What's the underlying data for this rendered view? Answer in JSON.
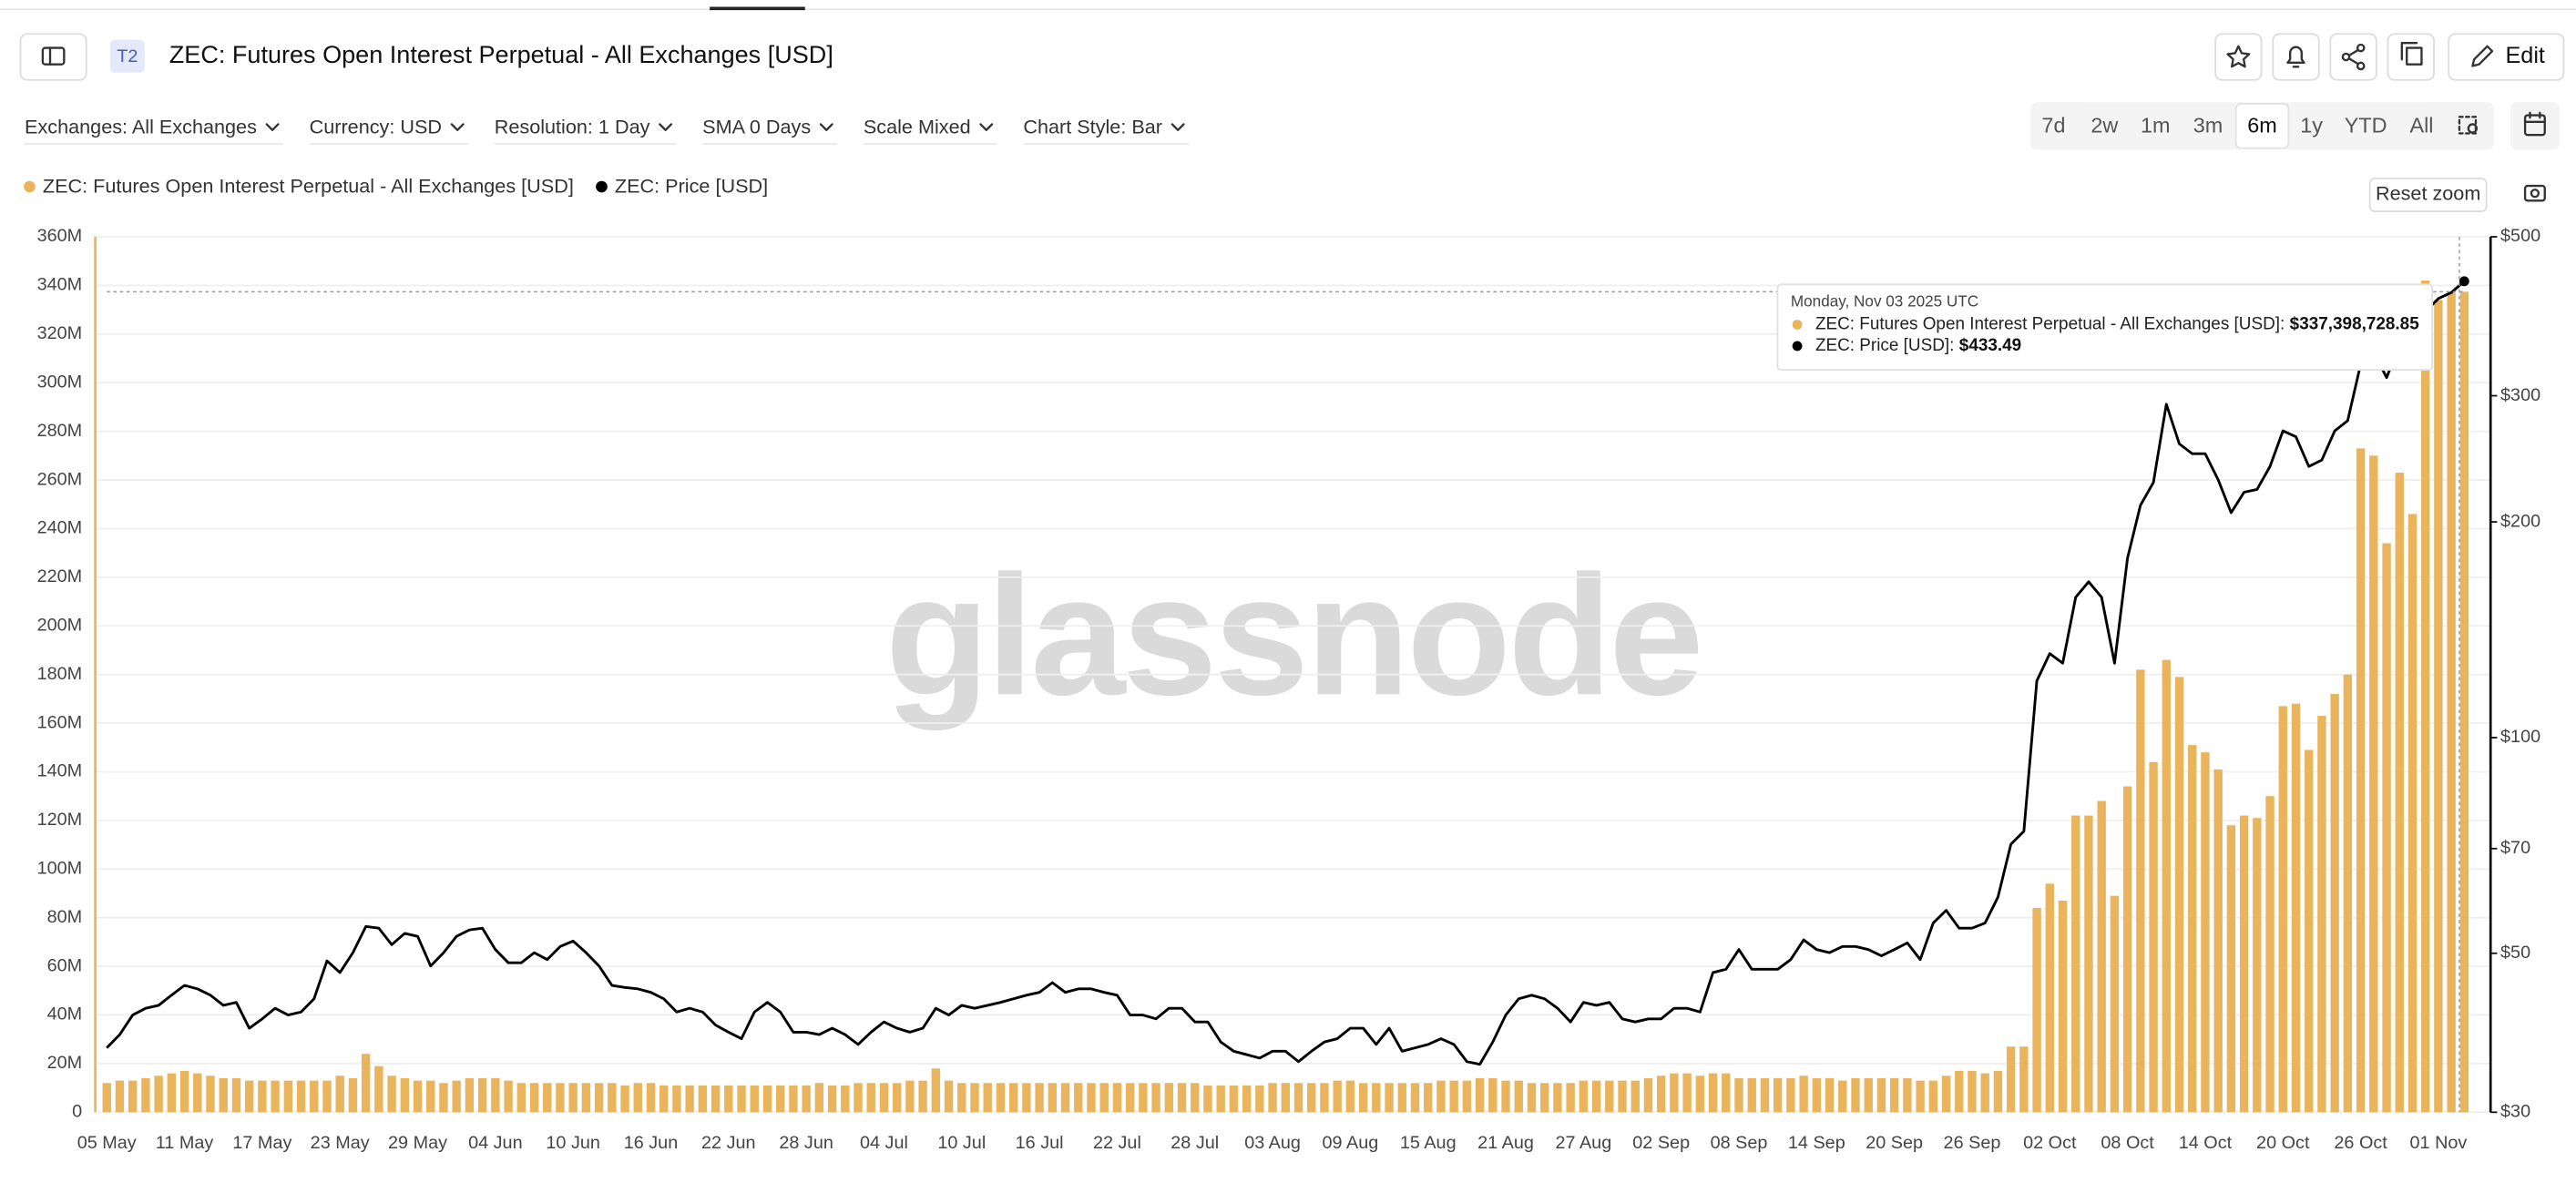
{
  "header": {
    "badge": "T2",
    "title": "ZEC: Futures Open Interest Perpetual - All Exchanges [USD]",
    "edit": "Edit"
  },
  "toolbar": {
    "filters": [
      "Exchanges: All Exchanges",
      "Currency: USD",
      "Resolution: 1 Day",
      "SMA 0 Days",
      "Scale Mixed",
      "Chart Style: Bar"
    ],
    "ranges": [
      "7d",
      "2w",
      "1m",
      "3m",
      "6m",
      "1y",
      "YTD",
      "All"
    ],
    "active_range": 4,
    "reset_zoom": "Reset zoom"
  },
  "chart_data": {
    "type": "bar",
    "watermark": "glassnode",
    "categories": [
      "05 May",
      null,
      null,
      null,
      null,
      null,
      "11 May",
      null,
      null,
      null,
      null,
      null,
      "17 May",
      null,
      null,
      null,
      null,
      null,
      "23 May",
      null,
      null,
      null,
      null,
      null,
      "29 May",
      null,
      null,
      null,
      null,
      null,
      "04 Jun",
      null,
      null,
      null,
      null,
      null,
      "10 Jun",
      null,
      null,
      null,
      null,
      null,
      "16 Jun",
      null,
      null,
      null,
      null,
      null,
      "22 Jun",
      null,
      null,
      null,
      null,
      null,
      "28 Jun",
      null,
      null,
      null,
      null,
      null,
      "04 Jul",
      null,
      null,
      null,
      null,
      null,
      "10 Jul",
      null,
      null,
      null,
      null,
      null,
      "16 Jul",
      null,
      null,
      null,
      null,
      null,
      "22 Jul",
      null,
      null,
      null,
      null,
      null,
      "28 Jul",
      null,
      null,
      null,
      null,
      null,
      "03 Aug",
      null,
      null,
      null,
      null,
      null,
      "09 Aug",
      null,
      null,
      null,
      null,
      null,
      "15 Aug",
      null,
      null,
      null,
      null,
      null,
      "21 Aug",
      null,
      null,
      null,
      null,
      null,
      "27 Aug",
      null,
      null,
      null,
      null,
      null,
      "02 Sep",
      null,
      null,
      null,
      null,
      null,
      "08 Sep",
      null,
      null,
      null,
      null,
      null,
      "14 Sep",
      null,
      null,
      null,
      null,
      null,
      "20 Sep",
      null,
      null,
      null,
      null,
      null,
      "26 Sep",
      null,
      null,
      null,
      null,
      null,
      "02 Oct",
      null,
      null,
      null,
      null,
      null,
      "08 Oct",
      null,
      null,
      null,
      null,
      null,
      "14 Oct",
      null,
      null,
      null,
      null,
      null,
      "20 Oct",
      null,
      null,
      null,
      null,
      null,
      "26 Oct",
      null,
      null,
      null,
      null,
      null,
      "01 Nov",
      null,
      null
    ],
    "series": [
      {
        "name": "ZEC: Futures Open Interest Perpetual - All Exchanges [USD]",
        "type": "bar",
        "color": "#e9b45c",
        "values": [
          12000000,
          13000000,
          13000000,
          14000000,
          15000000,
          16000000,
          17000000,
          16000000,
          15000000,
          14000000,
          14000000,
          13000000,
          13000000,
          13000000,
          13000000,
          13000000,
          13000000,
          13000000,
          15000000,
          14000000,
          24000000,
          19000000,
          15000000,
          14000000,
          13000000,
          13000000,
          12000000,
          13000000,
          14000000,
          14000000,
          14000000,
          13000000,
          12000000,
          12000000,
          12000000,
          12000000,
          12000000,
          12000000,
          12000000,
          12000000,
          11000000,
          12000000,
          12000000,
          11000000,
          11000000,
          11000000,
          11000000,
          11000000,
          11000000,
          11000000,
          11000000,
          11000000,
          11000000,
          11000000,
          11000000,
          12000000,
          11000000,
          11000000,
          12000000,
          12000000,
          12000000,
          12000000,
          13000000,
          13000000,
          18000000,
          13000000,
          12000000,
          12000000,
          12000000,
          12000000,
          12000000,
          12000000,
          12000000,
          12000000,
          12000000,
          12000000,
          12000000,
          12000000,
          12000000,
          12000000,
          12000000,
          12000000,
          12000000,
          12000000,
          12000000,
          11000000,
          11000000,
          11000000,
          11000000,
          11000000,
          12000000,
          12000000,
          12000000,
          12000000,
          12000000,
          13000000,
          13000000,
          12000000,
          12000000,
          12000000,
          12000000,
          12000000,
          12000000,
          13000000,
          13000000,
          13000000,
          14000000,
          14000000,
          13000000,
          13000000,
          12000000,
          12000000,
          12000000,
          12000000,
          13000000,
          13000000,
          13000000,
          13000000,
          13000000,
          14000000,
          15000000,
          16000000,
          16000000,
          15000000,
          16000000,
          16000000,
          14000000,
          14000000,
          14000000,
          14000000,
          14000000,
          15000000,
          14000000,
          14000000,
          13000000,
          14000000,
          14000000,
          14000000,
          14000000,
          14000000,
          13000000,
          13000000,
          15000000,
          17000000,
          17000000,
          16000000,
          17000000,
          27000000,
          27000000,
          84000000,
          94000000,
          87000000,
          122000000,
          122000000,
          128000000,
          89000000,
          134000000,
          182000000,
          144000000,
          186000000,
          179000000,
          151000000,
          148000000,
          141000000,
          118000000,
          122000000,
          121000000,
          130000000,
          167000000,
          168000000,
          149000000,
          163000000,
          172000000,
          180000000,
          273000000,
          270000000,
          234000000,
          263000000,
          246000000,
          342000000,
          334000000,
          337000000,
          337398728.85
        ]
      },
      {
        "name": "ZEC: Price [USD]",
        "type": "line",
        "axis": "y2",
        "color": "#000000",
        "values": [
          36.9,
          38.5,
          41.0,
          41.9,
          42.3,
          43.7,
          45.1,
          44.6,
          43.7,
          42.3,
          42.7,
          39.3,
          40.5,
          41.9,
          41.0,
          41.4,
          43.2,
          48.8,
          47.0,
          50.1,
          54.5,
          54.2,
          51.4,
          53.3,
          52.8,
          48.0,
          50.1,
          52.8,
          53.9,
          54.2,
          50.6,
          48.5,
          48.5,
          50.1,
          49.0,
          51.1,
          52.0,
          50.1,
          48.0,
          45.1,
          44.8,
          44.6,
          44.1,
          43.2,
          41.4,
          41.9,
          41.4,
          39.7,
          38.8,
          38.0,
          41.4,
          42.7,
          41.4,
          38.8,
          38.8,
          38.5,
          39.3,
          38.5,
          37.3,
          38.8,
          40.1,
          39.3,
          38.8,
          39.3,
          41.9,
          41.0,
          42.3,
          41.9,
          42.3,
          42.7,
          43.2,
          43.7,
          44.1,
          45.5,
          44.1,
          44.6,
          44.6,
          44.1,
          43.7,
          41.0,
          41.0,
          40.5,
          41.9,
          41.9,
          40.1,
          40.1,
          37.6,
          36.5,
          36.1,
          35.7,
          36.5,
          36.5,
          35.3,
          36.5,
          37.6,
          38.0,
          39.3,
          39.3,
          37.3,
          39.3,
          36.5,
          36.9,
          37.3,
          38.0,
          37.3,
          35.3,
          35.0,
          37.6,
          41.0,
          43.2,
          43.7,
          43.2,
          41.9,
          40.1,
          42.7,
          42.3,
          42.7,
          40.5,
          40.1,
          40.5,
          40.5,
          41.9,
          41.9,
          41.4,
          47.0,
          47.5,
          50.6,
          47.5,
          47.5,
          47.5,
          49.0,
          52.2,
          50.6,
          50.1,
          51.1,
          51.1,
          50.6,
          49.6,
          50.6,
          51.7,
          49.0,
          55.1,
          57.4,
          54.2,
          54.2,
          55.1,
          59.9,
          71.0,
          74.0,
          120,
          131,
          127,
          157,
          165,
          157,
          127,
          178,
          211,
          227,
          292,
          257,
          249,
          249,
          229,
          206,
          220,
          222,
          239,
          268,
          263,
          239,
          244,
          268,
          277,
          332,
          346,
          318,
          353,
          373,
          393,
          410,
          418,
          433.49
        ]
      }
    ],
    "ylim": [
      0,
      360000000
    ],
    "yticks": [
      0,
      {
        "value": 20000000,
        "label": "20M"
      },
      {
        "value": 40000000,
        "label": "40M"
      },
      {
        "value": 60000000,
        "label": "60M"
      },
      {
        "value": 80000000,
        "label": "80M"
      },
      {
        "value": 100000000,
        "label": "100M"
      },
      {
        "value": 120000000,
        "label": "120M"
      },
      {
        "value": 140000000,
        "label": "140M"
      },
      {
        "value": 160000000,
        "label": "160M"
      },
      {
        "value": 180000000,
        "label": "180M"
      },
      {
        "value": 200000000,
        "label": "200M"
      },
      {
        "value": 220000000,
        "label": "220M"
      },
      {
        "value": 240000000,
        "label": "240M"
      },
      {
        "value": 260000000,
        "label": "260M"
      },
      {
        "value": 280000000,
        "label": "280M"
      },
      {
        "value": 300000000,
        "label": "300M"
      },
      {
        "value": 320000000,
        "label": "320M"
      },
      {
        "value": 340000000,
        "label": "340M"
      },
      {
        "value": 360000000,
        "label": "360M"
      }
    ],
    "y2lim": [
      30,
      500
    ],
    "y2scale": "log",
    "y2ticks": [
      {
        "value": 30,
        "label": "$30"
      },
      {
        "value": 50,
        "label": "$50"
      },
      {
        "value": 70,
        "label": "$70"
      },
      {
        "value": 100,
        "label": "$100"
      },
      {
        "value": 200,
        "label": "$200"
      },
      {
        "value": 300,
        "label": "$300"
      },
      {
        "value": 500,
        "label": "$500"
      }
    ],
    "grid": true,
    "tooltip": {
      "date": "Monday, Nov 03 2025 UTC",
      "rows": [
        {
          "label": "ZEC: Futures Open Interest Perpetual - All Exchanges [USD]:",
          "value": "$337,398,728.85"
        },
        {
          "label": "ZEC: Price [USD]:",
          "value": "$433.49"
        }
      ]
    }
  }
}
